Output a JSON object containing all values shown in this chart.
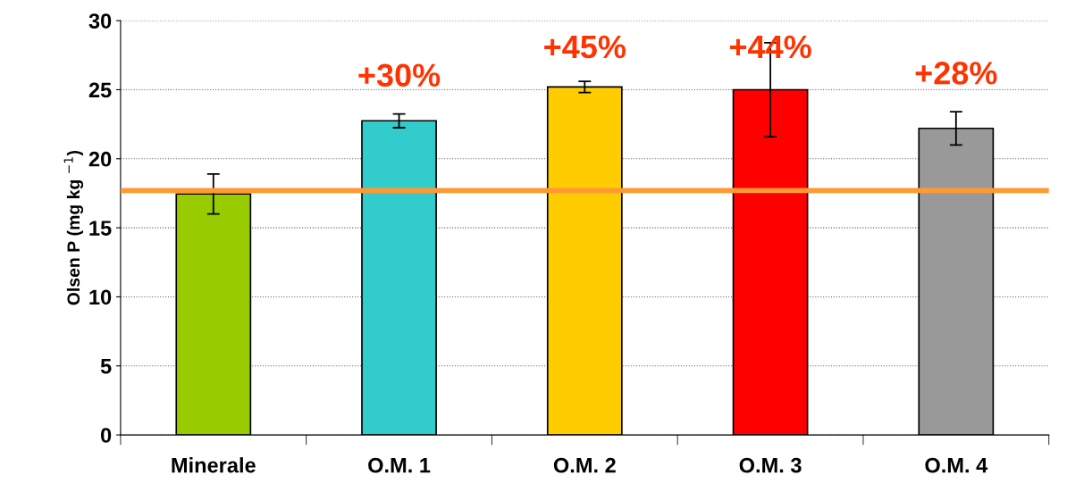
{
  "chart_data": {
    "type": "bar",
    "ylabel": "Olsen P (mg kg $^{−1}$)",
    "categories": [
      "Minerale",
      "O.M. 1",
      "O.M. 2",
      "O.M. 3",
      "O.M. 4"
    ],
    "values": [
      17.45,
      22.75,
      25.2,
      25.0,
      22.2
    ],
    "errors": [
      1.45,
      0.5,
      0.4,
      3.4,
      1.2
    ],
    "colors": [
      "#99cc00",
      "#33cccc",
      "#ffcc00",
      "#ff0000",
      "#999999"
    ],
    "ylim": [
      0,
      30
    ],
    "yticks": [
      0,
      5,
      10,
      15,
      20,
      25,
      30
    ],
    "grid": "y",
    "ref_lines": [
      {
        "axis": "y",
        "value": 17.7,
        "color": "#ff9933"
      }
    ],
    "annotations": [
      "+30%",
      "+45%",
      "+44%",
      "+28%"
    ]
  }
}
